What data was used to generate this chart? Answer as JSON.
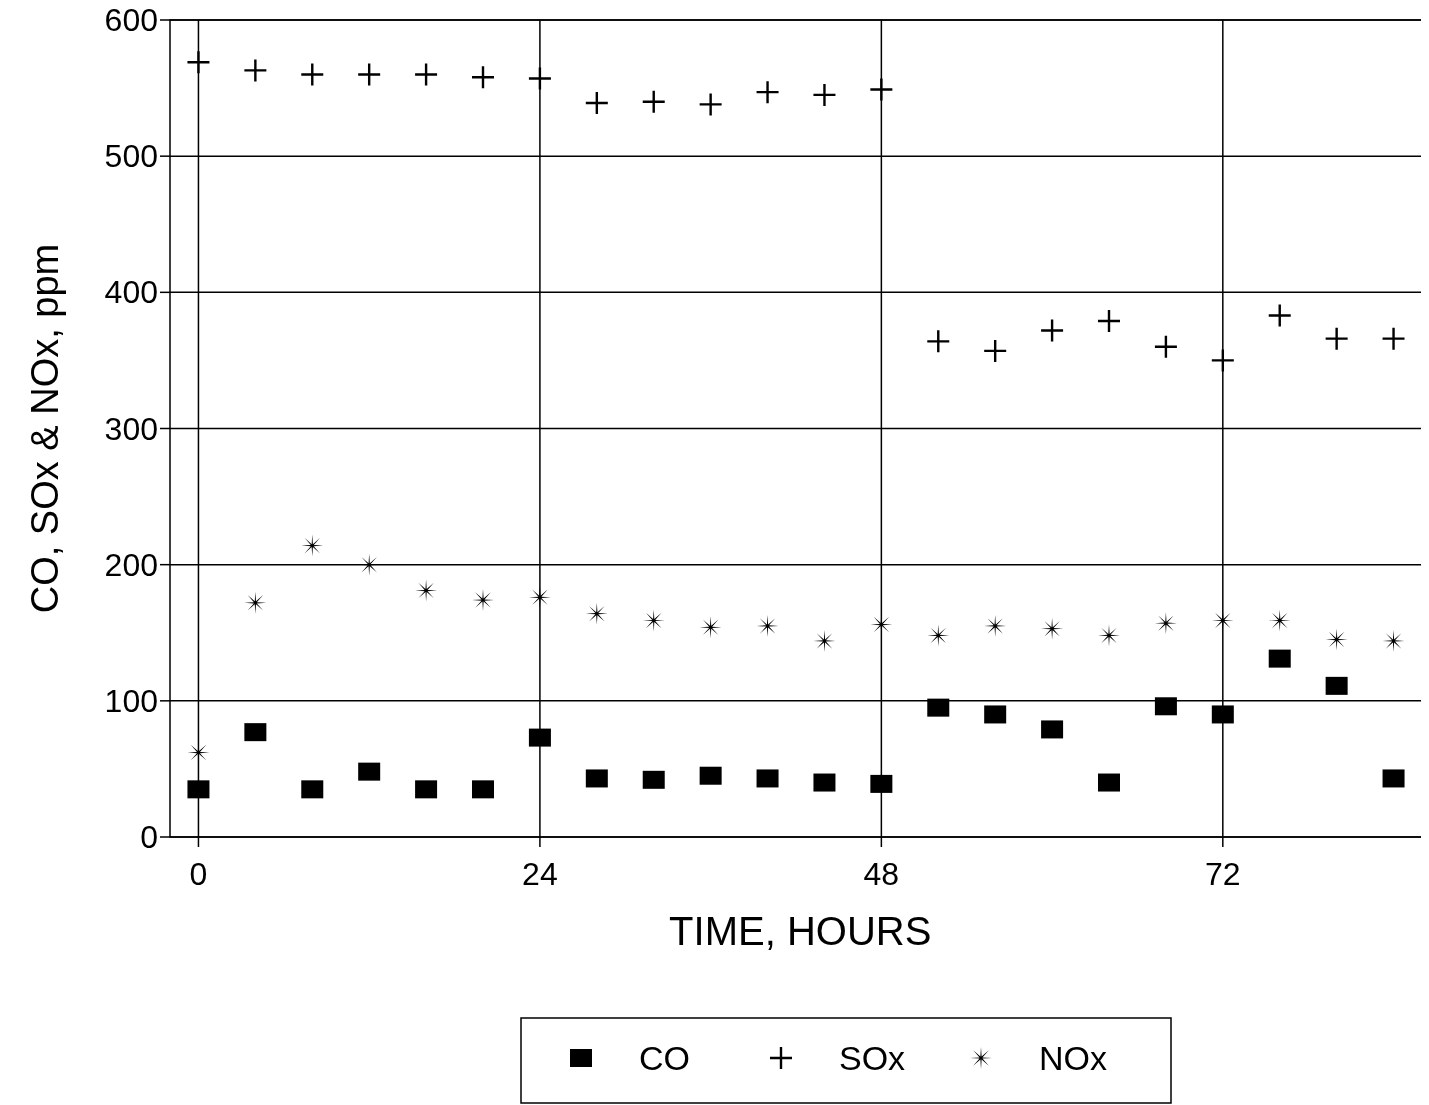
{
  "chart_data": {
    "type": "scatter",
    "xlabel": "TIME,  HOURS",
    "ylabel": "CO, SOx & NOx,  ppm",
    "x": [
      0,
      4,
      8,
      12,
      16,
      20,
      24,
      28,
      32,
      36,
      40,
      44,
      48,
      52,
      56,
      60,
      64,
      68,
      72,
      76,
      80,
      84
    ],
    "xlim": [
      -2,
      86
    ],
    "xticks": [
      0,
      24,
      48,
      72
    ],
    "ylim": [
      0,
      600
    ],
    "yticks": [
      0,
      100,
      200,
      300,
      400,
      500,
      600
    ],
    "grid": true,
    "legend": "bottom",
    "series": [
      {
        "name": "CO",
        "color": "#000000",
        "marker": "square",
        "values": [
          35,
          77,
          35,
          48,
          35,
          35,
          73,
          43,
          42,
          45,
          43,
          40,
          39,
          95,
          90,
          79,
          40,
          96,
          90,
          131,
          111,
          43
        ]
      },
      {
        "name": "SOx",
        "color": "#000000",
        "marker": "cross",
        "values": [
          569,
          563,
          560,
          560,
          560,
          558,
          557,
          539,
          540,
          538,
          547,
          545,
          549,
          364,
          357,
          372,
          379,
          360,
          350,
          383,
          366,
          366
        ]
      },
      {
        "name": "NOx",
        "color": "#000000",
        "marker": "star",
        "values": [
          62,
          172,
          214,
          200,
          181,
          174,
          176,
          164,
          159,
          154,
          155,
          144,
          156,
          148,
          155,
          153,
          148,
          157,
          159,
          159,
          145,
          144
        ]
      }
    ]
  }
}
